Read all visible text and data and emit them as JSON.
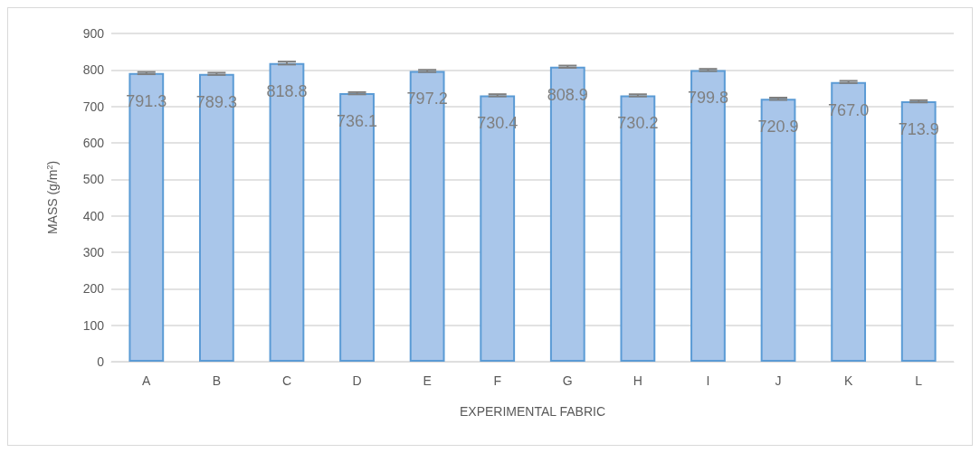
{
  "chart_data": {
    "type": "bar",
    "xlabel": "EXPERIMENTAL FABRIC",
    "ylabel": "MASS (g/m$^{2}$)",
    "categories": [
      "A",
      "B",
      "C",
      "D",
      "E",
      "F",
      "G",
      "H",
      "I",
      "J",
      "K",
      "L"
    ],
    "values": [
      791.3,
      789.3,
      818.8,
      736.1,
      797.2,
      730.4,
      808.9,
      730.2,
      799.8,
      720.9,
      767.0,
      713.9
    ],
    "value_labels": [
      "791.3",
      "789.3",
      "818.8",
      "736.1",
      "797.2",
      "730.4",
      "808.9",
      "730.2",
      "799.8",
      "720.9",
      "767.0",
      "713.9"
    ],
    "errors": [
      3,
      3,
      4,
      3,
      3,
      3,
      3,
      3,
      3,
      3,
      3,
      3
    ],
    "color": "#a9c6ea",
    "ylim": [
      0,
      900
    ],
    "yticks": [
      0,
      100,
      200,
      300,
      400,
      500,
      600,
      700,
      800,
      900
    ],
    "grid": "y"
  }
}
